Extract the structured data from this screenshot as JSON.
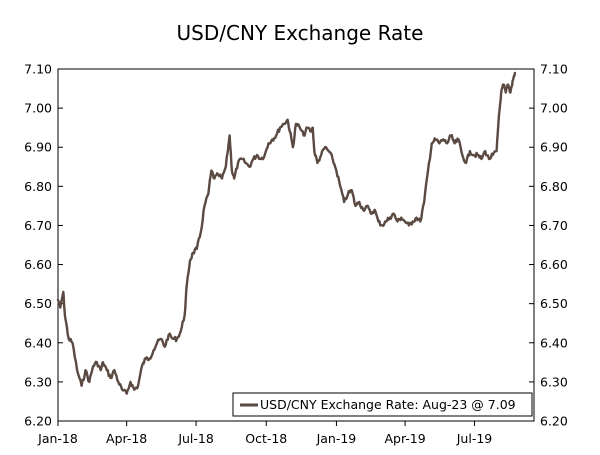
{
  "chart_data": {
    "type": "line",
    "title": "USD/CNY Exchange Rate",
    "xlabel": "",
    "ylabel": "",
    "x_ticks": [
      "Jan-18",
      "Apr-18",
      "Jul-18",
      "Oct-18",
      "Jan-19",
      "Apr-19",
      "Jul-19"
    ],
    "x_range": [
      "2018-01-01",
      "2019-09-17"
    ],
    "ylim": [
      6.2,
      7.1
    ],
    "y_ticks": [
      "6.20",
      "6.30",
      "6.40",
      "6.50",
      "6.60",
      "6.70",
      "6.80",
      "6.90",
      "7.00",
      "7.10"
    ],
    "y_axis_right": true,
    "grid": false,
    "legend": {
      "position": "bottom-right",
      "label": "USD/CNY Exchange Rate: Aug-23 @ 7.09"
    },
    "line_color": "#5a4a42",
    "series": [
      {
        "name": "USD/CNY Exchange Rate: Aug-23 @ 7.09",
        "x": [
          "2018-01-01",
          "2018-01-04",
          "2018-01-08",
          "2018-01-10",
          "2018-01-15",
          "2018-01-20",
          "2018-01-26",
          "2018-02-01",
          "2018-02-06",
          "2018-02-11",
          "2018-02-16",
          "2018-02-21",
          "2018-02-26",
          "2018-03-01",
          "2018-03-06",
          "2018-03-11",
          "2018-03-16",
          "2018-03-21",
          "2018-03-26",
          "2018-04-01",
          "2018-04-06",
          "2018-04-11",
          "2018-04-16",
          "2018-04-21",
          "2018-04-26",
          "2018-05-01",
          "2018-05-06",
          "2018-05-11",
          "2018-05-16",
          "2018-05-21",
          "2018-05-26",
          "2018-06-01",
          "2018-06-06",
          "2018-06-11",
          "2018-06-16",
          "2018-06-19",
          "2018-06-23",
          "2018-06-27",
          "2018-07-02",
          "2018-07-07",
          "2018-07-12",
          "2018-07-17",
          "2018-07-21",
          "2018-07-25",
          "2018-07-30",
          "2018-08-04",
          "2018-08-09",
          "2018-08-14",
          "2018-08-17",
          "2018-08-20",
          "2018-08-25",
          "2018-08-30",
          "2018-09-04",
          "2018-09-09",
          "2018-09-14",
          "2018-09-19",
          "2018-09-24",
          "2018-09-29",
          "2018-10-04",
          "2018-10-09",
          "2018-10-14",
          "2018-10-19",
          "2018-10-24",
          "2018-10-29",
          "2018-11-01",
          "2018-11-05",
          "2018-11-09",
          "2018-11-14",
          "2018-11-19",
          "2018-11-24",
          "2018-11-29",
          "2018-12-01",
          "2018-12-03",
          "2018-12-07",
          "2018-12-12",
          "2018-12-17",
          "2018-12-22",
          "2018-12-27",
          "2019-01-01",
          "2019-01-06",
          "2019-01-11",
          "2019-01-16",
          "2019-01-21",
          "2019-01-26",
          "2019-01-31",
          "2019-02-05",
          "2019-02-10",
          "2019-02-15",
          "2019-02-20",
          "2019-02-25",
          "2019-03-02",
          "2019-03-07",
          "2019-03-12",
          "2019-03-17",
          "2019-03-22",
          "2019-03-27",
          "2019-04-01",
          "2019-04-06",
          "2019-04-11",
          "2019-04-16",
          "2019-04-21",
          "2019-04-26",
          "2019-05-01",
          "2019-05-06",
          "2019-05-11",
          "2019-05-16",
          "2019-05-21",
          "2019-05-26",
          "2019-05-31",
          "2019-06-05",
          "2019-06-10",
          "2019-06-15",
          "2019-06-20",
          "2019-06-25",
          "2019-06-30",
          "2019-07-05",
          "2019-07-10",
          "2019-07-15",
          "2019-07-20",
          "2019-07-25",
          "2019-07-30",
          "2019-08-02",
          "2019-08-05",
          "2019-08-08",
          "2019-08-11",
          "2019-08-14",
          "2019-08-17",
          "2019-08-20",
          "2019-08-23"
        ],
        "y": [
          6.51,
          6.49,
          6.53,
          6.47,
          6.41,
          6.4,
          6.33,
          6.29,
          6.33,
          6.3,
          6.34,
          6.35,
          6.33,
          6.35,
          6.33,
          6.31,
          6.33,
          6.3,
          6.28,
          6.27,
          6.3,
          6.28,
          6.29,
          6.34,
          6.36,
          6.36,
          6.38,
          6.4,
          6.41,
          6.39,
          6.42,
          6.41,
          6.41,
          6.43,
          6.47,
          6.55,
          6.61,
          6.63,
          6.64,
          6.68,
          6.75,
          6.78,
          6.84,
          6.82,
          6.83,
          6.82,
          6.85,
          6.93,
          6.84,
          6.82,
          6.86,
          6.87,
          6.86,
          6.85,
          6.87,
          6.88,
          6.87,
          6.88,
          6.91,
          6.92,
          6.93,
          6.95,
          6.96,
          6.97,
          6.94,
          6.9,
          6.96,
          6.95,
          6.93,
          6.95,
          6.94,
          6.95,
          6.89,
          6.86,
          6.88,
          6.9,
          6.89,
          6.87,
          6.84,
          6.8,
          6.76,
          6.78,
          6.79,
          6.75,
          6.76,
          6.74,
          6.75,
          6.73,
          6.74,
          6.71,
          6.7,
          6.71,
          6.72,
          6.73,
          6.71,
          6.72,
          6.71,
          6.7,
          6.71,
          6.72,
          6.71,
          6.76,
          6.84,
          6.91,
          6.92,
          6.91,
          6.92,
          6.91,
          6.93,
          6.91,
          6.92,
          6.88,
          6.86,
          6.89,
          6.88,
          6.88,
          6.87,
          6.89,
          6.87,
          6.88,
          6.89,
          6.98,
          7.04,
          7.06,
          7.04,
          7.06,
          7.04,
          7.07,
          7.09
        ]
      }
    ]
  }
}
